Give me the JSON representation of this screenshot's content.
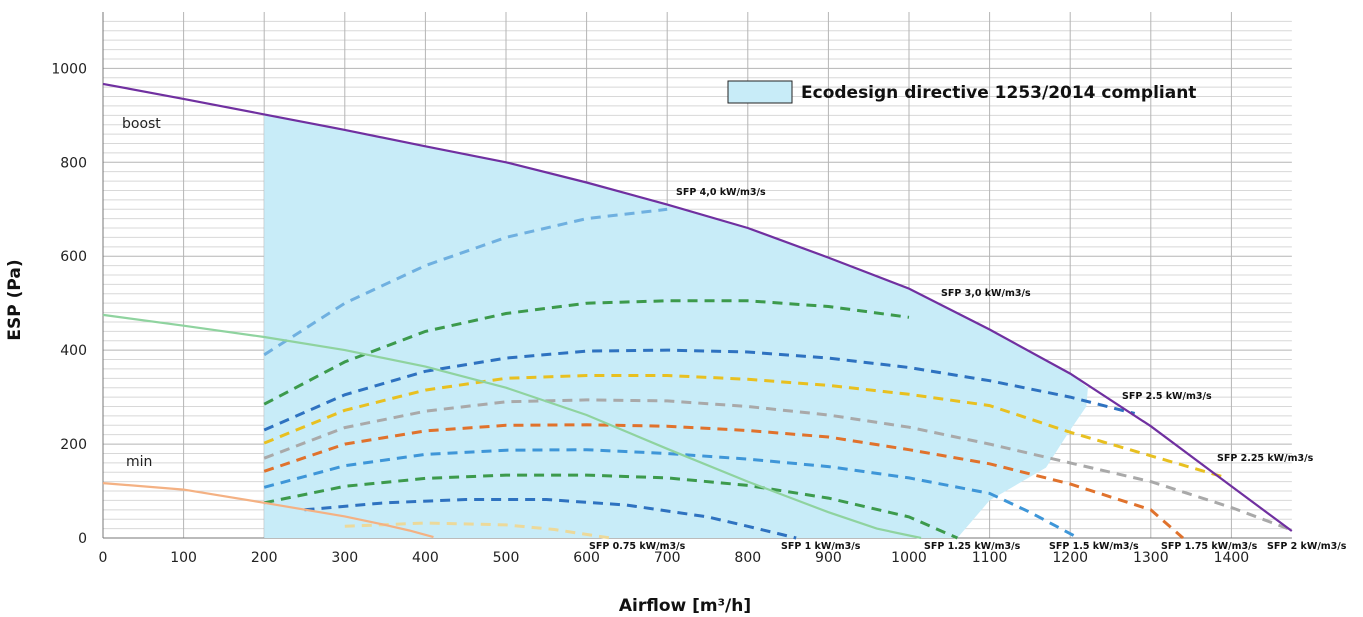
{
  "chart_data": {
    "type": "line",
    "xlabel": "Airflow [m³/h]",
    "ylabel": "ESP (Pa)",
    "xlim": [
      0,
      1475
    ],
    "ylim": [
      0,
      1120
    ],
    "x_ticks": [
      0,
      100,
      200,
      300,
      400,
      500,
      600,
      700,
      800,
      900,
      1000,
      1100,
      1200,
      1300,
      1400
    ],
    "y_ticks": [
      0,
      200,
      400,
      600,
      800,
      1000
    ],
    "grid": true,
    "legend": {
      "label": "Ecodesign directive 1253/2014 compliant",
      "color": "#c8ecf8",
      "placement": "top-right"
    },
    "compliant_region": [
      [
        200,
        0
      ],
      [
        200,
        902
      ],
      [
        300,
        869
      ],
      [
        400,
        834
      ],
      [
        500,
        800
      ],
      [
        600,
        757
      ],
      [
        700,
        710
      ],
      [
        800,
        660
      ],
      [
        900,
        597
      ],
      [
        1000,
        531
      ],
      [
        1100,
        444
      ],
      [
        1200,
        350
      ],
      [
        1222,
        320
      ],
      [
        1220,
        280
      ],
      [
        1200,
        230
      ],
      [
        1170,
        150
      ],
      [
        1100,
        80
      ],
      [
        1060,
        0
      ]
    ],
    "operating_curves": [
      {
        "name": "boost",
        "color": "#7030a0",
        "points": [
          [
            0,
            967
          ],
          [
            100,
            935
          ],
          [
            200,
            902
          ],
          [
            300,
            869
          ],
          [
            400,
            834
          ],
          [
            500,
            800
          ],
          [
            600,
            757
          ],
          [
            700,
            710
          ],
          [
            800,
            660
          ],
          [
            900,
            597
          ],
          [
            1000,
            531
          ],
          [
            1100,
            444
          ],
          [
            1200,
            350
          ],
          [
            1300,
            238
          ],
          [
            1400,
            110
          ],
          [
            1475,
            15
          ]
        ]
      },
      {
        "name": "min",
        "color": "#f4b183",
        "points": [
          [
            0,
            117
          ],
          [
            100,
            103
          ],
          [
            200,
            75
          ],
          [
            300,
            46
          ],
          [
            350,
            28
          ],
          [
            380,
            16
          ],
          [
            410,
            2
          ]
        ]
      },
      {
        "name": "",
        "color": "#8fd39f",
        "points": [
          [
            0,
            475
          ],
          [
            100,
            452
          ],
          [
            200,
            428
          ],
          [
            300,
            400
          ],
          [
            400,
            365
          ],
          [
            500,
            320
          ],
          [
            600,
            262
          ],
          [
            700,
            190
          ],
          [
            800,
            120
          ],
          [
            900,
            55
          ],
          [
            960,
            20
          ],
          [
            1015,
            0
          ]
        ]
      }
    ],
    "sfp_curves": [
      {
        "name": "SFP 4,0 kW/m3/s",
        "color": "#6fb0e0",
        "points": [
          [
            200,
            390
          ],
          [
            300,
            500
          ],
          [
            400,
            580
          ],
          [
            500,
            640
          ],
          [
            600,
            680
          ],
          [
            700,
            700
          ]
        ]
      },
      {
        "name": "SFP 3,0 kW/m3/s",
        "color": "#3c9a4c",
        "points": [
          [
            200,
            285
          ],
          [
            300,
            375
          ],
          [
            400,
            440
          ],
          [
            500,
            478
          ],
          [
            600,
            500
          ],
          [
            700,
            505
          ],
          [
            800,
            505
          ],
          [
            900,
            493
          ],
          [
            1000,
            470
          ]
        ]
      },
      {
        "name": "SFP 2.5 kW/m3/s",
        "color": "#2e72c0",
        "points": [
          [
            200,
            230
          ],
          [
            300,
            305
          ],
          [
            400,
            355
          ],
          [
            500,
            383
          ],
          [
            600,
            398
          ],
          [
            700,
            400
          ],
          [
            800,
            396
          ],
          [
            900,
            383
          ],
          [
            1000,
            363
          ],
          [
            1100,
            335
          ],
          [
            1200,
            300
          ],
          [
            1280,
            265
          ]
        ]
      },
      {
        "name": "SFP 2.25 kW/m3/s",
        "color": "#e8c020",
        "points": [
          [
            200,
            202
          ],
          [
            300,
            272
          ],
          [
            400,
            315
          ],
          [
            500,
            340
          ],
          [
            600,
            346
          ],
          [
            700,
            346
          ],
          [
            800,
            338
          ],
          [
            900,
            325
          ],
          [
            1000,
            306
          ],
          [
            1100,
            282
          ],
          [
            1200,
            225
          ],
          [
            1300,
            175
          ],
          [
            1390,
            130
          ]
        ]
      },
      {
        "name": "SFP 2 kW/m3/s",
        "color": "#a9a9a9",
        "points": [
          [
            200,
            170
          ],
          [
            300,
            235
          ],
          [
            400,
            270
          ],
          [
            500,
            290
          ],
          [
            600,
            294
          ],
          [
            700,
            292
          ],
          [
            800,
            280
          ],
          [
            900,
            262
          ],
          [
            1000,
            236
          ],
          [
            1100,
            200
          ],
          [
            1200,
            160
          ],
          [
            1300,
            120
          ],
          [
            1400,
            65
          ],
          [
            1470,
            20
          ]
        ]
      },
      {
        "name": "SFP 1.75 kW/m3/s",
        "color": "#e0722c",
        "points": [
          [
            200,
            142
          ],
          [
            300,
            200
          ],
          [
            400,
            228
          ],
          [
            500,
            240
          ],
          [
            600,
            241
          ],
          [
            700,
            238
          ],
          [
            800,
            229
          ],
          [
            900,
            215
          ],
          [
            1000,
            188
          ],
          [
            1100,
            158
          ],
          [
            1200,
            115
          ],
          [
            1300,
            60
          ],
          [
            1340,
            0
          ]
        ]
      },
      {
        "name": "SFP 1.5 kW/m3/s",
        "color": "#3e96d8",
        "points": [
          [
            200,
            108
          ],
          [
            300,
            154
          ],
          [
            400,
            178
          ],
          [
            500,
            187
          ],
          [
            600,
            188
          ],
          [
            700,
            180
          ],
          [
            800,
            168
          ],
          [
            900,
            152
          ],
          [
            1000,
            128
          ],
          [
            1100,
            95
          ],
          [
            1150,
            55
          ],
          [
            1210,
            0
          ]
        ]
      },
      {
        "name": "SFP 1.25 kW/m3/s",
        "color": "#3c9a4c",
        "points": [
          [
            200,
            75
          ],
          [
            300,
            110
          ],
          [
            400,
            127
          ],
          [
            500,
            134
          ],
          [
            600,
            134
          ],
          [
            700,
            128
          ],
          [
            800,
            112
          ],
          [
            900,
            85
          ],
          [
            1000,
            45
          ],
          [
            1060,
            0
          ]
        ]
      },
      {
        "name": "SFP 1 kW/m3/s",
        "color": "#2e72c0",
        "points": [
          [
            250,
            60
          ],
          [
            350,
            75
          ],
          [
            450,
            82
          ],
          [
            550,
            82
          ],
          [
            650,
            70
          ],
          [
            750,
            45
          ],
          [
            800,
            25
          ],
          [
            860,
            0
          ]
        ]
      },
      {
        "name": "SFP 0.75 kW/m3/s",
        "color": "#ecd99a",
        "points": [
          [
            300,
            25
          ],
          [
            400,
            32
          ],
          [
            500,
            28
          ],
          [
            560,
            18
          ],
          [
            610,
            5
          ],
          [
            630,
            0
          ]
        ]
      }
    ],
    "curve_labels": [
      "boost",
      "min"
    ],
    "sfp_labels": [
      "SFP 4,0 kW/m3/s",
      "SFP 3,0 kW/m3/s",
      "SFP 2.5 kW/m3/s",
      "SFP 2.25 kW/m3/s",
      "SFP 0.75 kW/m3/s",
      "SFP 1 kW/m3/s",
      "SFP 1.25 kW/m3/s",
      "SFP 1.5 kW/m3/s",
      "SFP 1.75 kW/m3/s",
      "SFP 2 kW/m3/s"
    ]
  }
}
